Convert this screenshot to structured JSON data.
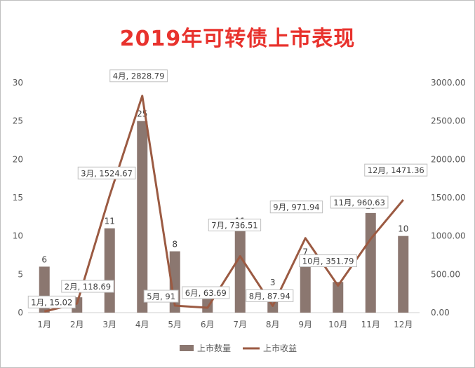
{
  "chart_data": {
    "type": "bar",
    "title": "2019年可转债上市表现",
    "categories": [
      "1月",
      "2月",
      "3月",
      "4月",
      "5月",
      "6月",
      "7月",
      "8月",
      "9月",
      "10月",
      "11月",
      "12月"
    ],
    "series": [
      {
        "name": "上市数量",
        "type": "bar",
        "axis": "left",
        "color": "#8b7770",
        "values": [
          6,
          2,
          11,
          25,
          8,
          2,
          11,
          3,
          7,
          4,
          13,
          10
        ],
        "labels": [
          "6",
          "",
          "11",
          "25",
          "8",
          "2",
          "11",
          "3",
          "7",
          "",
          "13",
          "10"
        ]
      },
      {
        "name": "上市收益",
        "type": "line",
        "axis": "right",
        "color": "#9b5a42",
        "values": [
          15.02,
          118.69,
          1524.67,
          2828.79,
          91,
          63.69,
          736.51,
          87.94,
          971.94,
          351.79,
          960.63,
          1471.36
        ],
        "labels": [
          "1月, 15.02",
          "2月, 118.69",
          "3月, 1524.67",
          "4月, 2828.79",
          "5月, 91",
          "6月, 63.69",
          "7月, 736.51",
          "8月, 87.94",
          "9月, 971.94",
          "10月, 351.79",
          "11月, 960.63",
          "12月, 1471.36"
        ]
      }
    ],
    "y_left": {
      "ylim": [
        0,
        30
      ],
      "ticks": [
        "0",
        "5",
        "10",
        "15",
        "20",
        "25",
        "30"
      ]
    },
    "y_right": {
      "ylim": [
        0,
        3000
      ],
      "ticks": [
        "0.00",
        "500.00",
        "1000.00",
        "1500.00",
        "2000.00",
        "2500.00",
        "3000.00"
      ]
    },
    "grid": false,
    "legend": "bottom"
  }
}
